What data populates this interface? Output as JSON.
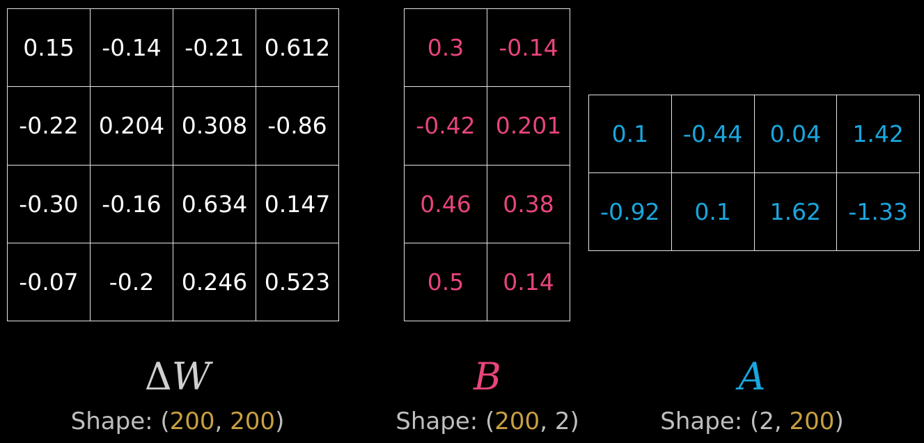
{
  "colors": {
    "background": "#000000",
    "grid_line": "#e6e6e6",
    "delta_w_text": "#ffffff",
    "b_text": "#e8457a",
    "a_text": "#1aa6de",
    "shape_text": "#bfbfbf",
    "dimension_highlight": "#c8a040",
    "delta_w_symbol": "#cfcfcf"
  },
  "delta_w": {
    "symbol_prefix": "Δ",
    "symbol": "W",
    "shape_prefix": "Shape: (",
    "dim1": "200",
    "sep": ", ",
    "dim2": "200",
    "shape_suffix": ")",
    "rows": [
      [
        "0.15",
        "-0.14",
        "-0.21",
        "0.612"
      ],
      [
        "-0.22",
        "0.204",
        "0.308",
        "-0.86"
      ],
      [
        "-0.30",
        "-0.16",
        "0.634",
        "0.147"
      ],
      [
        "-0.07",
        "-0.2",
        "0.246",
        "0.523"
      ]
    ]
  },
  "b": {
    "symbol": "B",
    "shape_prefix": "Shape: (",
    "dim1": "200",
    "sep": ", ",
    "dim2": "2",
    "shape_suffix": ")",
    "rows": [
      [
        "0.3",
        "-0.14"
      ],
      [
        "-0.42",
        "0.201"
      ],
      [
        "0.46",
        "0.38"
      ],
      [
        "0.5",
        "0.14"
      ]
    ]
  },
  "a": {
    "symbol": "A",
    "shape_prefix": "Shape: (",
    "dim1": "2",
    "sep": ", ",
    "dim2": "200",
    "shape_suffix": ")",
    "rows": [
      [
        "0.1",
        "-0.44",
        "0.04",
        "1.42"
      ],
      [
        "-0.92",
        "0.1",
        "1.62",
        "-1.33"
      ]
    ]
  }
}
